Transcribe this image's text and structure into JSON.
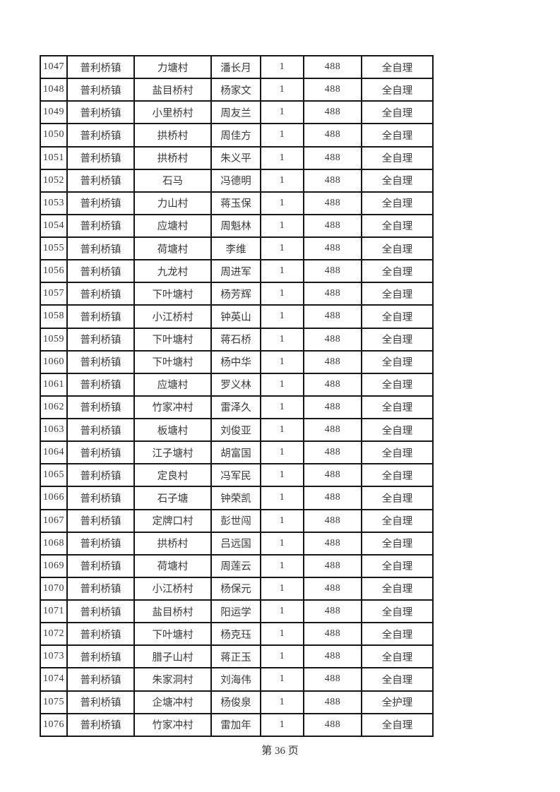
{
  "page": {
    "footer_page_label": "第 36 页"
  },
  "table": {
    "rows": [
      [
        "1047",
        "普利桥镇",
        "力塘村",
        "潘长月",
        "1",
        "488",
        "全自理"
      ],
      [
        "1048",
        "普利桥镇",
        "盐目桥村",
        "杨家文",
        "1",
        "488",
        "全自理"
      ],
      [
        "1049",
        "普利桥镇",
        "小里桥村",
        "周友兰",
        "1",
        "488",
        "全自理"
      ],
      [
        "1050",
        "普利桥镇",
        "拱桥村",
        "周佳方",
        "1",
        "488",
        "全自理"
      ],
      [
        "1051",
        "普利桥镇",
        "拱桥村",
        "朱义平",
        "1",
        "488",
        "全自理"
      ],
      [
        "1052",
        "普利桥镇",
        "石马",
        "冯德明",
        "1",
        "488",
        "全自理"
      ],
      [
        "1053",
        "普利桥镇",
        "力山村",
        "蒋玉保",
        "1",
        "488",
        "全自理"
      ],
      [
        "1054",
        "普利桥镇",
        "应塘村",
        "周魁林",
        "1",
        "488",
        "全自理"
      ],
      [
        "1055",
        "普利桥镇",
        "荷塘村",
        "李维",
        "1",
        "488",
        "全自理"
      ],
      [
        "1056",
        "普利桥镇",
        "九龙村",
        "周进军",
        "1",
        "488",
        "全自理"
      ],
      [
        "1057",
        "普利桥镇",
        "下叶塘村",
        "杨芳辉",
        "1",
        "488",
        "全自理"
      ],
      [
        "1058",
        "普利桥镇",
        "小江桥村",
        "钟英山",
        "1",
        "488",
        "全自理"
      ],
      [
        "1059",
        "普利桥镇",
        "下叶塘村",
        "蒋石桥",
        "1",
        "488",
        "全自理"
      ],
      [
        "1060",
        "普利桥镇",
        "下叶塘村",
        "杨中华",
        "1",
        "488",
        "全自理"
      ],
      [
        "1061",
        "普利桥镇",
        "应塘村",
        "罗义林",
        "1",
        "488",
        "全自理"
      ],
      [
        "1062",
        "普利桥镇",
        "竹家冲村",
        "雷泽久",
        "1",
        "488",
        "全自理"
      ],
      [
        "1063",
        "普利桥镇",
        "板塘村",
        "刘俊亚",
        "1",
        "488",
        "全自理"
      ],
      [
        "1064",
        "普利桥镇",
        "江子塘村",
        "胡富国",
        "1",
        "488",
        "全自理"
      ],
      [
        "1065",
        "普利桥镇",
        "定良村",
        "冯军民",
        "1",
        "488",
        "全自理"
      ],
      [
        "1066",
        "普利桥镇",
        "石子塘",
        "钟荣凯",
        "1",
        "488",
        "全自理"
      ],
      [
        "1067",
        "普利桥镇",
        "定牌口村",
        "彭世闯",
        "1",
        "488",
        "全自理"
      ],
      [
        "1068",
        "普利桥镇",
        "拱桥村",
        "吕远国",
        "1",
        "488",
        "全自理"
      ],
      [
        "1069",
        "普利桥镇",
        "荷塘村",
        "周莲云",
        "1",
        "488",
        "全自理"
      ],
      [
        "1070",
        "普利桥镇",
        "小江桥村",
        "杨保元",
        "1",
        "488",
        "全自理"
      ],
      [
        "1071",
        "普利桥镇",
        "盐目桥村",
        "阳运学",
        "1",
        "488",
        "全自理"
      ],
      [
        "1072",
        "普利桥镇",
        "下叶塘村",
        "杨克珏",
        "1",
        "488",
        "全自理"
      ],
      [
        "1073",
        "普利桥镇",
        "腊子山村",
        "蒋正玉",
        "1",
        "488",
        "全自理"
      ],
      [
        "1074",
        "普利桥镇",
        "朱家洞村",
        "刘海伟",
        "1",
        "488",
        "全自理"
      ],
      [
        "1075",
        "普利桥镇",
        "企塘冲村",
        "杨俊泉",
        "1",
        "488",
        "全护理"
      ],
      [
        "1076",
        "普利桥镇",
        "竹家冲村",
        "雷加年",
        "1",
        "488",
        "全自理"
      ]
    ]
  }
}
